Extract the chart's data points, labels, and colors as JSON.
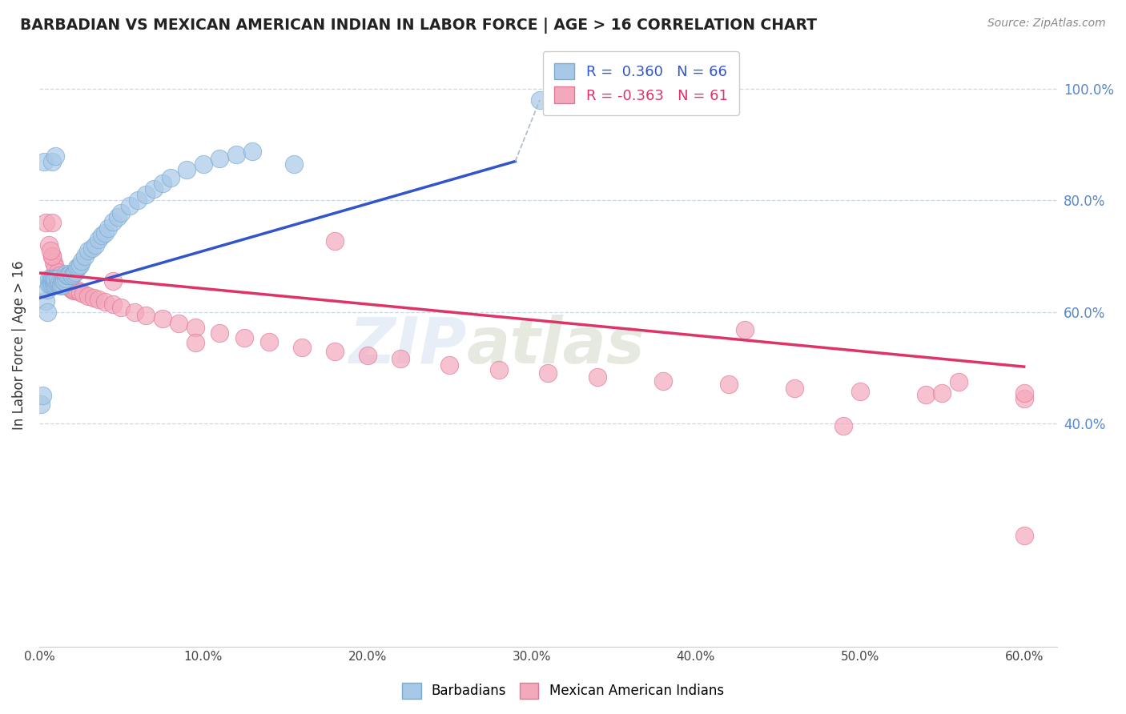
{
  "title": "BARBADIAN VS MEXICAN AMERICAN INDIAN IN LABOR FORCE | AGE > 16 CORRELATION CHART",
  "source": "Source: ZipAtlas.com",
  "ylabel": "In Labor Force | Age > 16",
  "xlim": [
    0.0,
    0.62
  ],
  "ylim": [
    0.0,
    1.08
  ],
  "xtick_vals": [
    0.0,
    0.1,
    0.2,
    0.3,
    0.4,
    0.5,
    0.6
  ],
  "ytick_vals": [
    0.4,
    0.6,
    0.8,
    1.0
  ],
  "barbadian_color": "#a8c8e8",
  "mexican_color": "#f4a8bc",
  "barbadian_edge": "#7aaad0",
  "mexican_edge": "#e07898",
  "trend_blue": "#3355cc",
  "trend_pink": "#dd3366",
  "watermark_color": "#d0dff0",
  "barbadian_x": [
    0.001,
    0.002,
    0.003,
    0.004,
    0.005,
    0.005,
    0.006,
    0.006,
    0.007,
    0.007,
    0.008,
    0.008,
    0.008,
    0.009,
    0.009,
    0.009,
    0.01,
    0.01,
    0.01,
    0.011,
    0.011,
    0.012,
    0.012,
    0.013,
    0.013,
    0.014,
    0.014,
    0.015,
    0.015,
    0.016,
    0.016,
    0.017,
    0.018,
    0.019,
    0.02,
    0.021,
    0.022,
    0.023,
    0.024,
    0.025,
    0.026,
    0.028,
    0.03,
    0.032,
    0.034,
    0.036,
    0.038,
    0.04,
    0.042,
    0.045,
    0.048,
    0.05,
    0.055,
    0.06,
    0.065,
    0.07,
    0.075,
    0.08,
    0.09,
    0.1,
    0.11,
    0.12,
    0.13,
    0.155,
    0.008,
    0.01
  ],
  "barbadian_y": [
    0.435,
    0.45,
    0.87,
    0.62,
    0.6,
    0.64,
    0.65,
    0.66,
    0.65,
    0.66,
    0.655,
    0.66,
    0.65,
    0.65,
    0.655,
    0.66,
    0.65,
    0.656,
    0.66,
    0.65,
    0.66,
    0.648,
    0.653,
    0.65,
    0.647,
    0.648,
    0.657,
    0.66,
    0.655,
    0.66,
    0.668,
    0.665,
    0.665,
    0.668,
    0.665,
    0.668,
    0.672,
    0.68,
    0.682,
    0.685,
    0.692,
    0.7,
    0.71,
    0.715,
    0.72,
    0.73,
    0.738,
    0.742,
    0.75,
    0.762,
    0.77,
    0.778,
    0.79,
    0.8,
    0.81,
    0.82,
    0.83,
    0.84,
    0.855,
    0.865,
    0.875,
    0.882,
    0.888,
    0.865,
    0.87,
    0.88
  ],
  "mexican_x": [
    0.004,
    0.006,
    0.008,
    0.009,
    0.01,
    0.011,
    0.012,
    0.013,
    0.014,
    0.015,
    0.016,
    0.017,
    0.018,
    0.019,
    0.02,
    0.021,
    0.022,
    0.023,
    0.025,
    0.027,
    0.03,
    0.033,
    0.036,
    0.04,
    0.045,
    0.05,
    0.058,
    0.065,
    0.075,
    0.085,
    0.095,
    0.11,
    0.125,
    0.14,
    0.16,
    0.18,
    0.2,
    0.22,
    0.25,
    0.28,
    0.31,
    0.34,
    0.38,
    0.42,
    0.46,
    0.5,
    0.54,
    0.6,
    0.43,
    0.49,
    0.55,
    0.008,
    0.045,
    0.18,
    0.095,
    0.6,
    0.008,
    0.56,
    0.007,
    0.6
  ],
  "mexican_y": [
    0.76,
    0.72,
    0.7,
    0.688,
    0.68,
    0.672,
    0.666,
    0.66,
    0.658,
    0.655,
    0.652,
    0.648,
    0.645,
    0.642,
    0.64,
    0.638,
    0.638,
    0.64,
    0.635,
    0.632,
    0.628,
    0.626,
    0.622,
    0.618,
    0.614,
    0.608,
    0.6,
    0.594,
    0.588,
    0.58,
    0.572,
    0.562,
    0.554,
    0.546,
    0.537,
    0.53,
    0.522,
    0.516,
    0.505,
    0.496,
    0.49,
    0.484,
    0.477,
    0.47,
    0.464,
    0.458,
    0.452,
    0.445,
    0.568,
    0.396,
    0.455,
    0.7,
    0.655,
    0.728,
    0.545,
    0.455,
    0.76,
    0.475,
    0.71,
    0.2
  ],
  "outlier_bx": 0.305,
  "outlier_by": 0.98,
  "blue_trend_x0": 0.0,
  "blue_trend_y0": 0.625,
  "blue_trend_x1": 0.29,
  "blue_trend_y1": 0.87,
  "pink_trend_x0": 0.0,
  "pink_trend_y0": 0.67,
  "pink_trend_x1": 0.6,
  "pink_trend_y1": 0.502
}
